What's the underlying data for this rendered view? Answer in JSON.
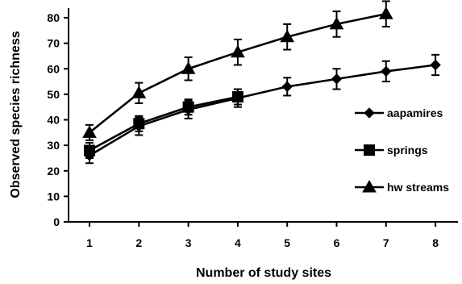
{
  "chart_data": {
    "type": "line",
    "title": "",
    "xlabel": "Number of study sites",
    "ylabel": "Observed species richness",
    "x": [
      1,
      2,
      3,
      4,
      5,
      6,
      7,
      8
    ],
    "xlim": [
      0.5,
      8.5
    ],
    "ylim": [
      0,
      80
    ],
    "yticks": [
      0,
      10,
      20,
      30,
      40,
      50,
      60,
      70,
      80
    ],
    "grid": false,
    "legend_position": "right",
    "series": [
      {
        "name": "aapamires",
        "marker": "diamond",
        "x": [
          1,
          2,
          3,
          4,
          5,
          6,
          7,
          8
        ],
        "values": [
          26,
          37.5,
          44,
          48.5,
          53,
          56,
          59,
          61.5
        ],
        "error": [
          3,
          3.5,
          3.5,
          3.5,
          3.5,
          4,
          4,
          4
        ]
      },
      {
        "name": "springs",
        "marker": "square",
        "x": [
          1,
          2,
          3,
          4
        ],
        "values": [
          28,
          38.5,
          45,
          49
        ],
        "error": [
          3,
          3,
          3,
          3
        ]
      },
      {
        "name": "hw streams",
        "marker": "triangle",
        "x": [
          1,
          2,
          3,
          4,
          5,
          6,
          7
        ],
        "values": [
          35,
          50.5,
          60,
          66.5,
          72.5,
          77.5,
          81.5
        ],
        "error": [
          3,
          4,
          4.5,
          5,
          5,
          5,
          5
        ]
      }
    ]
  }
}
